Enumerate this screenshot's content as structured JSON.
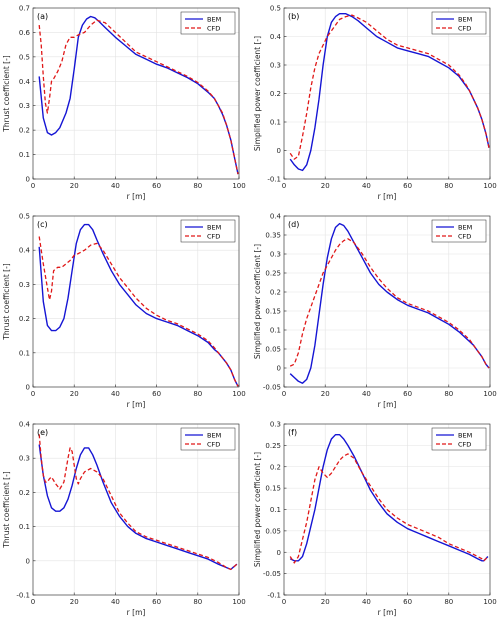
{
  "figure": {
    "legend_labels": [
      "BEM",
      "CFD"
    ],
    "colors": {
      "BEM": "#1515d4",
      "CFD": "#e01818"
    }
  },
  "chart_data": [
    {
      "type": "line",
      "panel": "(a)",
      "ylabel": "Thrust coefficient [-]",
      "xlabel": "r [m]",
      "xlim": [
        0,
        100
      ],
      "ylim": [
        0,
        0.7
      ],
      "xticks": [
        0,
        20,
        40,
        60,
        80,
        100
      ],
      "yticks": [
        0,
        0.1,
        0.2,
        0.3,
        0.4,
        0.5,
        0.6,
        0.7
      ],
      "ytick_labels": [
        "0",
        "0.1",
        "0.2",
        "0.3",
        "0.4",
        "0.5",
        "0.6",
        "0.7"
      ],
      "grid": true,
      "legend_position": "top-right",
      "series": [
        {
          "name": "BEM",
          "x": [
            3,
            5,
            7,
            9,
            11,
            13,
            16,
            18,
            20,
            22,
            24,
            26,
            28,
            30,
            32,
            35,
            40,
            45,
            50,
            55,
            60,
            65,
            70,
            75,
            80,
            85,
            88,
            90,
            92,
            94,
            96,
            98,
            99.5
          ],
          "y": [
            0.42,
            0.25,
            0.19,
            0.18,
            0.19,
            0.21,
            0.27,
            0.33,
            0.45,
            0.58,
            0.63,
            0.655,
            0.665,
            0.66,
            0.645,
            0.62,
            0.58,
            0.545,
            0.51,
            0.49,
            0.47,
            0.455,
            0.435,
            0.415,
            0.39,
            0.355,
            0.33,
            0.3,
            0.265,
            0.22,
            0.16,
            0.08,
            0.02
          ]
        },
        {
          "name": "CFD",
          "x": [
            3,
            4,
            5,
            6,
            7,
            8,
            9,
            10,
            12,
            14,
            16,
            18,
            20,
            22,
            25,
            28,
            31,
            35,
            40,
            45,
            50,
            55,
            60,
            65,
            70,
            75,
            80,
            85,
            88,
            90,
            92,
            94,
            96,
            98,
            99.5
          ],
          "y": [
            0.63,
            0.55,
            0.42,
            0.31,
            0.27,
            0.33,
            0.4,
            0.41,
            0.44,
            0.48,
            0.55,
            0.58,
            0.58,
            0.59,
            0.6,
            0.63,
            0.65,
            0.64,
            0.6,
            0.56,
            0.52,
            0.5,
            0.48,
            0.46,
            0.44,
            0.42,
            0.395,
            0.36,
            0.33,
            0.3,
            0.27,
            0.22,
            0.16,
            0.08,
            0.02
          ]
        }
      ]
    },
    {
      "type": "line",
      "panel": "(b)",
      "ylabel": "Simplified power coefficient [-]",
      "xlabel": "r [m]",
      "xlim": [
        0,
        100
      ],
      "ylim": [
        -0.1,
        0.5
      ],
      "xticks": [
        0,
        20,
        40,
        60,
        80,
        100
      ],
      "yticks": [
        -0.1,
        0,
        0.1,
        0.2,
        0.3,
        0.4,
        0.5
      ],
      "ytick_labels": [
        "-0.1",
        "0",
        "0.1",
        "0.2",
        "0.3",
        "0.4",
        "0.5"
      ],
      "grid": true,
      "legend_position": "top-right",
      "series": [
        {
          "name": "BEM",
          "x": [
            3,
            5,
            7,
            9,
            11,
            13,
            15,
            17,
            19,
            21,
            23,
            25,
            27,
            30,
            33,
            36,
            40,
            45,
            50,
            55,
            60,
            65,
            70,
            75,
            80,
            85,
            88,
            90,
            92,
            94,
            96,
            98,
            99.5
          ],
          "y": [
            -0.03,
            -0.05,
            -0.065,
            -0.07,
            -0.05,
            0,
            0.08,
            0.18,
            0.3,
            0.4,
            0.45,
            0.47,
            0.48,
            0.48,
            0.47,
            0.455,
            0.43,
            0.4,
            0.38,
            0.36,
            0.35,
            0.34,
            0.33,
            0.31,
            0.29,
            0.26,
            0.23,
            0.21,
            0.18,
            0.15,
            0.11,
            0.06,
            0.01
          ]
        },
        {
          "name": "CFD",
          "x": [
            3,
            5,
            7,
            9,
            11,
            13,
            15,
            17,
            19,
            21,
            23,
            25,
            27,
            30,
            33,
            36,
            40,
            45,
            50,
            55,
            60,
            65,
            70,
            75,
            80,
            85,
            88,
            90,
            92,
            94,
            96,
            98,
            99.5
          ],
          "y": [
            -0.01,
            -0.03,
            -0.02,
            0.05,
            0.13,
            0.22,
            0.29,
            0.34,
            0.37,
            0.4,
            0.42,
            0.44,
            0.46,
            0.47,
            0.475,
            0.465,
            0.45,
            0.42,
            0.39,
            0.37,
            0.36,
            0.35,
            0.34,
            0.32,
            0.3,
            0.265,
            0.235,
            0.21,
            0.18,
            0.15,
            0.11,
            0.06,
            0.01
          ]
        }
      ]
    },
    {
      "type": "line",
      "panel": "(c)",
      "ylabel": "Thrust coefficient [-]",
      "xlabel": "r [m]",
      "xlim": [
        0,
        100
      ],
      "ylim": [
        0,
        0.5
      ],
      "xticks": [
        0,
        20,
        40,
        60,
        80,
        100
      ],
      "yticks": [
        0,
        0.1,
        0.2,
        0.3,
        0.4,
        0.5
      ],
      "ytick_labels": [
        "0",
        "0.1",
        "0.2",
        "0.3",
        "0.4",
        "0.5"
      ],
      "grid": true,
      "legend_position": "top-right",
      "series": [
        {
          "name": "BEM",
          "x": [
            3,
            5,
            7,
            9,
            11,
            13,
            15,
            17,
            19,
            21,
            23,
            25,
            27,
            29,
            31,
            34,
            38,
            42,
            46,
            50,
            55,
            60,
            65,
            70,
            75,
            80,
            85,
            88,
            90,
            92,
            94,
            96,
            98,
            99.5
          ],
          "y": [
            0.41,
            0.25,
            0.18,
            0.165,
            0.165,
            0.175,
            0.2,
            0.26,
            0.34,
            0.42,
            0.46,
            0.475,
            0.475,
            0.46,
            0.43,
            0.39,
            0.34,
            0.3,
            0.27,
            0.24,
            0.215,
            0.2,
            0.19,
            0.18,
            0.165,
            0.15,
            0.13,
            0.11,
            0.1,
            0.085,
            0.07,
            0.05,
            0.02,
            0.002
          ]
        },
        {
          "name": "CFD",
          "x": [
            3,
            5,
            7,
            8,
            9,
            10,
            12,
            14,
            16,
            18,
            20,
            22,
            25,
            28,
            31,
            34,
            38,
            42,
            46,
            50,
            55,
            60,
            65,
            70,
            75,
            80,
            85,
            88,
            90,
            92,
            94,
            96,
            98,
            99.5
          ],
          "y": [
            0.44,
            0.36,
            0.29,
            0.255,
            0.28,
            0.34,
            0.35,
            0.35,
            0.36,
            0.37,
            0.385,
            0.39,
            0.4,
            0.415,
            0.42,
            0.4,
            0.36,
            0.32,
            0.29,
            0.26,
            0.23,
            0.21,
            0.195,
            0.185,
            0.17,
            0.155,
            0.135,
            0.115,
            0.1,
            0.085,
            0.07,
            0.05,
            0.02,
            0.002
          ]
        }
      ]
    },
    {
      "type": "line",
      "panel": "(d)",
      "ylabel": "Simplified power coefficient [-]",
      "xlabel": "r [m]",
      "xlim": [
        0,
        100
      ],
      "ylim": [
        -0.05,
        0.4
      ],
      "xticks": [
        0,
        20,
        40,
        60,
        80,
        100
      ],
      "yticks": [
        -0.05,
        0,
        0.05,
        0.1,
        0.15,
        0.2,
        0.25,
        0.3,
        0.35,
        0.4
      ],
      "ytick_labels": [
        "-0.05",
        "0",
        "0.05",
        "0.1",
        "0.15",
        "0.2",
        "0.25",
        "0.3",
        "0.35",
        "0.4"
      ],
      "grid": true,
      "legend_position": "top-right",
      "series": [
        {
          "name": "BEM",
          "x": [
            3,
            5,
            7,
            9,
            11,
            13,
            15,
            17,
            19,
            21,
            23,
            25,
            27,
            29,
            31,
            34,
            38,
            42,
            46,
            50,
            55,
            60,
            65,
            70,
            75,
            80,
            85,
            88,
            90,
            92,
            94,
            96,
            98,
            99.5
          ],
          "y": [
            -0.015,
            -0.025,
            -0.035,
            -0.04,
            -0.03,
            0,
            0.06,
            0.14,
            0.22,
            0.29,
            0.34,
            0.37,
            0.38,
            0.375,
            0.36,
            0.33,
            0.29,
            0.25,
            0.22,
            0.2,
            0.18,
            0.165,
            0.155,
            0.145,
            0.13,
            0.115,
            0.095,
            0.08,
            0.07,
            0.06,
            0.045,
            0.03,
            0.01,
            0.0
          ]
        },
        {
          "name": "CFD",
          "x": [
            3,
            5,
            7,
            9,
            11,
            13,
            15,
            17,
            19,
            21,
            23,
            25,
            27,
            29,
            31,
            34,
            38,
            42,
            46,
            50,
            55,
            60,
            65,
            70,
            75,
            80,
            85,
            88,
            90,
            92,
            94,
            96,
            98,
            99.5
          ],
          "y": [
            0.005,
            0.01,
            0.04,
            0.09,
            0.13,
            0.16,
            0.19,
            0.22,
            0.25,
            0.27,
            0.29,
            0.31,
            0.325,
            0.335,
            0.34,
            0.33,
            0.3,
            0.265,
            0.235,
            0.21,
            0.185,
            0.17,
            0.16,
            0.15,
            0.135,
            0.12,
            0.1,
            0.085,
            0.075,
            0.06,
            0.045,
            0.03,
            0.01,
            0.0
          ]
        }
      ]
    },
    {
      "type": "line",
      "panel": "(e)",
      "ylabel": "Thrust coefficient [-]",
      "xlabel": "r [m]",
      "xlim": [
        0,
        100
      ],
      "ylim": [
        -0.1,
        0.4
      ],
      "xticks": [
        0,
        20,
        40,
        60,
        80,
        100
      ],
      "yticks": [
        -0.1,
        0,
        0.1,
        0.2,
        0.3,
        0.4
      ],
      "ytick_labels": [
        "-0.1",
        "0",
        "0.1",
        "0.2",
        "0.3",
        "0.4"
      ],
      "grid": true,
      "legend_position": "top-right",
      "series": [
        {
          "name": "BEM",
          "x": [
            3,
            5,
            7,
            9,
            11,
            13,
            15,
            17,
            19,
            21,
            23,
            25,
            27,
            29,
            31,
            34,
            38,
            42,
            46,
            50,
            55,
            60,
            65,
            70,
            75,
            80,
            85,
            90,
            94,
            96,
            97,
            98,
            99
          ],
          "y": [
            0.34,
            0.25,
            0.19,
            0.155,
            0.145,
            0.145,
            0.155,
            0.18,
            0.22,
            0.27,
            0.31,
            0.33,
            0.33,
            0.31,
            0.28,
            0.23,
            0.17,
            0.13,
            0.1,
            0.08,
            0.065,
            0.055,
            0.045,
            0.035,
            0.025,
            0.015,
            0.005,
            -0.01,
            -0.02,
            -0.025,
            -0.02,
            -0.015,
            -0.01
          ]
        },
        {
          "name": "CFD",
          "x": [
            3,
            4,
            5,
            6,
            7,
            8,
            9,
            10,
            11,
            13,
            15,
            17,
            18,
            19,
            20,
            21,
            22,
            23,
            25,
            28,
            31,
            34,
            38,
            42,
            46,
            50,
            55,
            60,
            65,
            70,
            75,
            80,
            85,
            90,
            94,
            96,
            97,
            98,
            99
          ],
          "y": [
            0.37,
            0.3,
            0.25,
            0.23,
            0.23,
            0.24,
            0.245,
            0.235,
            0.225,
            0.21,
            0.23,
            0.3,
            0.33,
            0.32,
            0.28,
            0.24,
            0.225,
            0.24,
            0.26,
            0.27,
            0.26,
            0.24,
            0.19,
            0.14,
            0.11,
            0.085,
            0.07,
            0.06,
            0.05,
            0.04,
            0.03,
            0.02,
            0.01,
            -0.005,
            -0.02,
            -0.025,
            -0.02,
            -0.015,
            -0.01
          ]
        }
      ]
    },
    {
      "type": "line",
      "panel": "(f)",
      "ylabel": "Simplified power coefficient [-]",
      "xlabel": "r [m]",
      "xlim": [
        0,
        100
      ],
      "ylim": [
        -0.1,
        0.3
      ],
      "xticks": [
        0,
        20,
        40,
        60,
        80,
        100
      ],
      "yticks": [
        -0.1,
        -0.05,
        0,
        0.05,
        0.1,
        0.15,
        0.2,
        0.25,
        0.3
      ],
      "ytick_labels": [
        "-0.1",
        "-0.05",
        "0",
        "0.05",
        "0.1",
        "0.15",
        "0.2",
        "0.25",
        "0.3"
      ],
      "grid": true,
      "legend_position": "top-right",
      "series": [
        {
          "name": "BEM",
          "x": [
            3,
            5,
            7,
            9,
            11,
            13,
            15,
            17,
            19,
            21,
            23,
            25,
            27,
            29,
            31,
            34,
            38,
            42,
            46,
            50,
            55,
            60,
            65,
            70,
            75,
            80,
            85,
            90,
            94,
            96,
            97,
            98,
            99
          ],
          "y": [
            -0.015,
            -0.02,
            -0.02,
            -0.01,
            0.02,
            0.06,
            0.1,
            0.15,
            0.2,
            0.24,
            0.265,
            0.275,
            0.275,
            0.265,
            0.25,
            0.225,
            0.185,
            0.145,
            0.115,
            0.09,
            0.07,
            0.055,
            0.045,
            0.035,
            0.025,
            0.015,
            0.005,
            -0.005,
            -0.015,
            -0.02,
            -0.02,
            -0.015,
            -0.01
          ]
        },
        {
          "name": "CFD",
          "x": [
            3,
            5,
            7,
            9,
            11,
            13,
            15,
            17,
            19,
            21,
            23,
            25,
            27,
            29,
            31,
            34,
            38,
            42,
            46,
            50,
            55,
            60,
            65,
            70,
            75,
            80,
            85,
            90,
            94,
            96,
            97,
            98,
            99
          ],
          "y": [
            -0.01,
            -0.025,
            -0.01,
            0.03,
            0.07,
            0.12,
            0.17,
            0.2,
            0.185,
            0.175,
            0.185,
            0.2,
            0.215,
            0.225,
            0.23,
            0.22,
            0.185,
            0.155,
            0.125,
            0.1,
            0.08,
            0.065,
            0.055,
            0.045,
            0.035,
            0.02,
            0.01,
            0.0,
            -0.01,
            -0.015,
            -0.02,
            -0.015,
            -0.01
          ]
        }
      ]
    }
  ]
}
